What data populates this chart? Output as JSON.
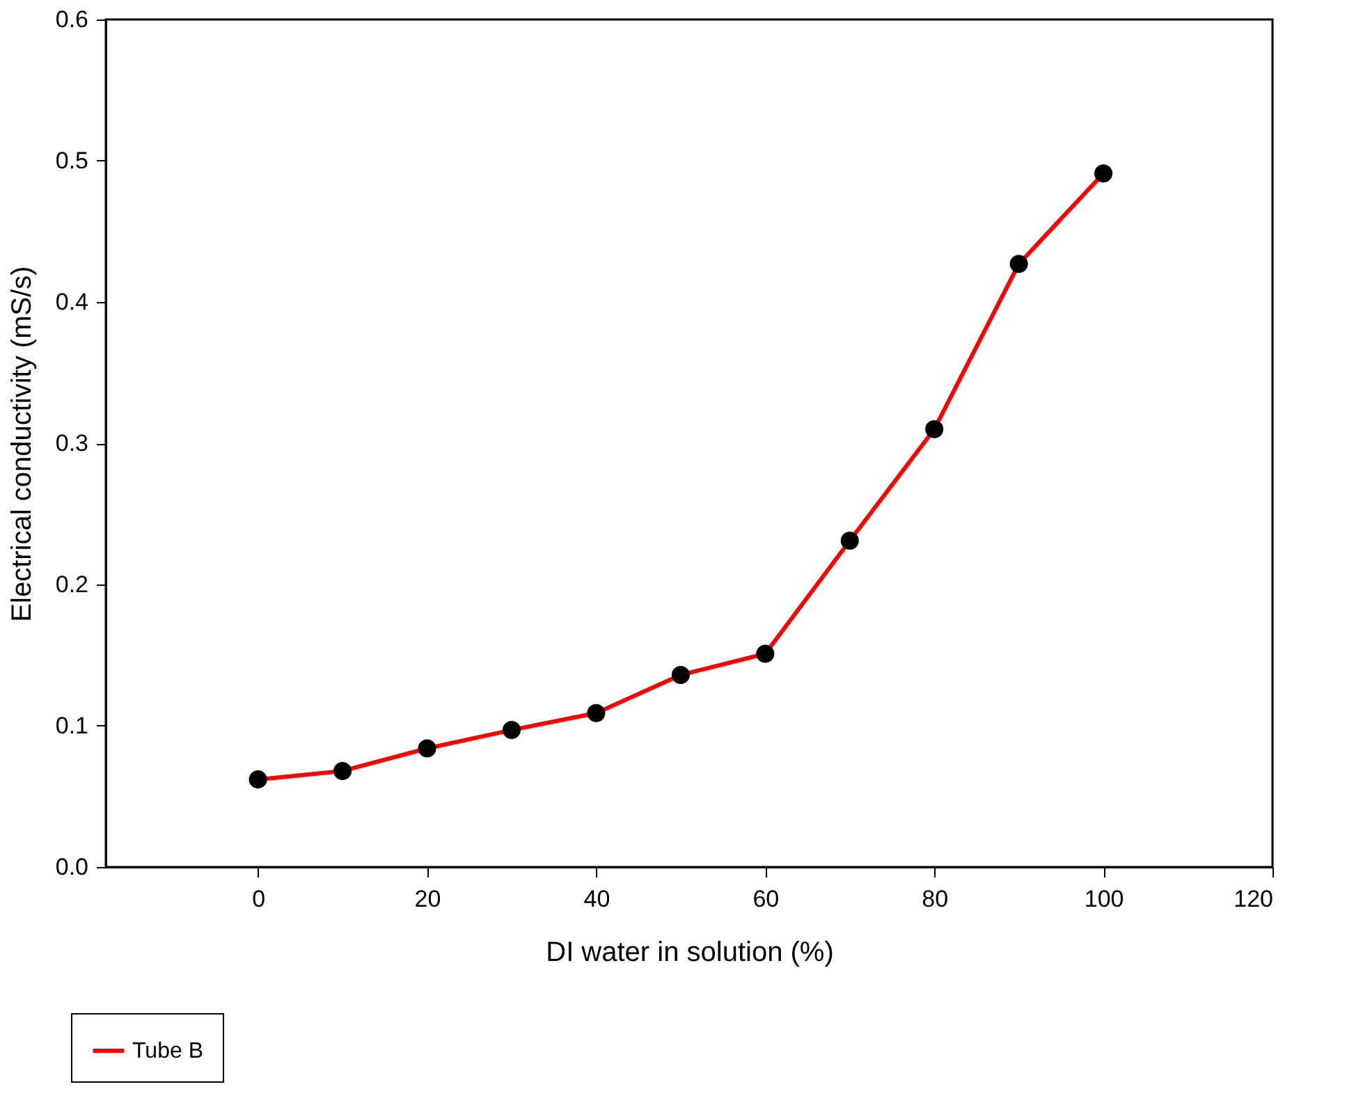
{
  "chart_data": {
    "type": "line",
    "xlabel": "DI water in solution (%)",
    "ylabel": "Electrical conductivity (mS/s)",
    "x": [
      0,
      10,
      20,
      30,
      40,
      50,
      60,
      70,
      80,
      90,
      100
    ],
    "series": [
      {
        "name": "Tube B",
        "color": "#ff0000",
        "values": [
          0.062,
          0.068,
          0.084,
          0.097,
          0.109,
          0.136,
          0.151,
          0.231,
          0.31,
          0.427,
          0.491
        ]
      }
    ],
    "xlim": [
      -18,
      120
    ],
    "xticks": [
      0,
      20,
      40,
      60,
      80,
      100,
      120
    ],
    "ylim": [
      0,
      0.6
    ],
    "yticks": [
      {
        "value": 0,
        "label": "0.0"
      },
      0.1,
      0.2,
      0.3,
      0.4,
      0.5,
      0.6
    ],
    "marker": "circle",
    "line_style": "solid",
    "grid": false,
    "legend": "bottom left"
  }
}
